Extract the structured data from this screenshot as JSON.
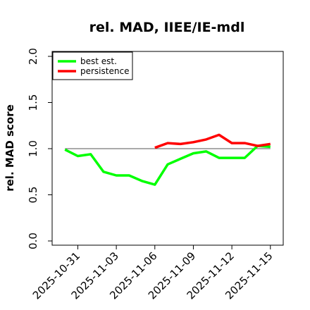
{
  "chart_data": {
    "type": "line",
    "title": "rel. MAD, IIEE/IE-mdl",
    "xlabel": "",
    "ylabel": "rel. MAD score",
    "ylim": [
      0.0,
      2.0
    ],
    "yticks": [
      "0.0",
      "0.5",
      "1.0",
      "1.5",
      "2.0"
    ],
    "xlim": [
      "2025-10-29",
      "2025-11-16"
    ],
    "xticks": [
      "2025-10-31",
      "2025-11-03",
      "2025-11-06",
      "2025-11-09",
      "2025-11-12",
      "2025-11-15"
    ],
    "grid": false,
    "legend": "top-left",
    "reference_line": 1.0,
    "series": [
      {
        "name": "best est.",
        "color": "#00ff00",
        "x": [
          "2025-10-30",
          "2025-10-31",
          "2025-11-01",
          "2025-11-02",
          "2025-11-03",
          "2025-11-04",
          "2025-11-05",
          "2025-11-06",
          "2025-11-07",
          "2025-11-08",
          "2025-11-09",
          "2025-11-10",
          "2025-11-11",
          "2025-11-12",
          "2025-11-13",
          "2025-11-14",
          "2025-11-15"
        ],
        "values": [
          0.99,
          0.92,
          0.94,
          0.75,
          0.71,
          0.71,
          0.65,
          0.61,
          0.83,
          0.89,
          0.95,
          0.97,
          0.9,
          0.9,
          0.9,
          1.03,
          1.02
        ]
      },
      {
        "name": "persistence",
        "color": "#ff0000",
        "x": [
          "2025-11-06",
          "2025-11-07",
          "2025-11-08",
          "2025-11-09",
          "2025-11-10",
          "2025-11-11",
          "2025-11-12",
          "2025-11-13",
          "2025-11-14",
          "2025-11-15"
        ],
        "values": [
          1.01,
          1.06,
          1.05,
          1.07,
          1.1,
          1.15,
          1.06,
          1.06,
          1.03,
          1.05
        ]
      }
    ]
  }
}
